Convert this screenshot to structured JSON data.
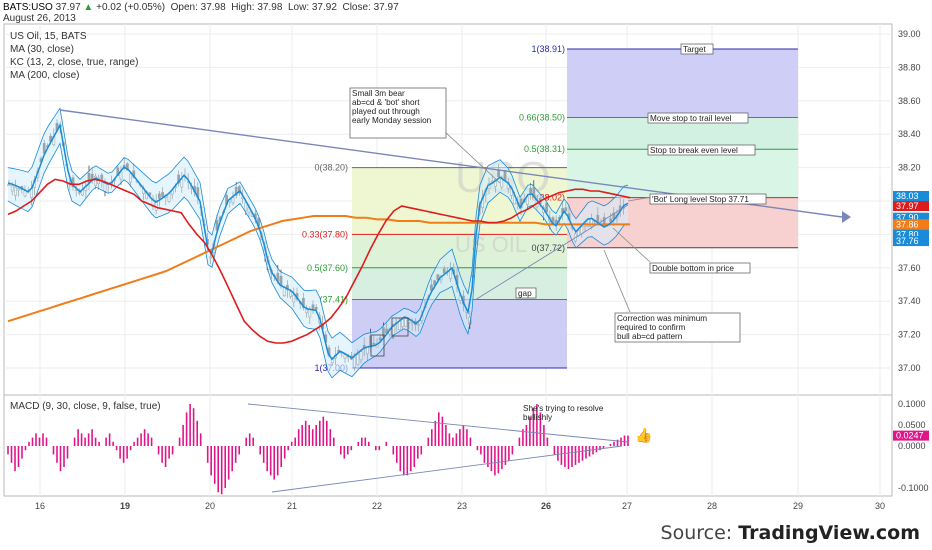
{
  "header": {
    "symbol": "BATS:USO",
    "last": "37.97",
    "change": "+0.02 (+0.05%)",
    "open_label": "Open:",
    "open": "37.98",
    "high_label": "High:",
    "high": "37.98",
    "low_label": "Low:",
    "low": "37.92",
    "close_label": "Close:",
    "close": "37.97",
    "date": "August 26, 2013"
  },
  "indicators": [
    "US Oil, 15, BATS",
    "MA (30, close)",
    "KC (13, 2, close, true, range)",
    "MA (200, close)"
  ],
  "macd_label": "MACD (9, 30, close, 9, false, true)",
  "source": {
    "prefix": "Source: ",
    "brand": "TradingView.com"
  },
  "colors": {
    "ma30": "#dd1d1d",
    "ma200": "#f07c1a",
    "kc": "#1a8bd6",
    "macd": "#e0158a",
    "trend": "#7a86b8"
  },
  "chart_data": {
    "type": "candlestick",
    "x_ticks": [
      "16",
      "19",
      "20",
      "21",
      "22",
      "23",
      "26",
      "27",
      "28",
      "29",
      "30"
    ],
    "y_ticks": [
      "39.00",
      "38.80",
      "38.60",
      "38.40",
      "38.20",
      "38.00",
      "37.80",
      "37.60",
      "37.40",
      "37.20",
      "37.00"
    ],
    "ylim": [
      36.9,
      39.08
    ],
    "price_tags": [
      {
        "label": "38.03",
        "value": 38.03,
        "color": "#1a8bd6"
      },
      {
        "label": "37.97",
        "value": 37.97,
        "color": "#dd1d1d"
      },
      {
        "label": "37.90",
        "value": 37.9,
        "color": "#1a8bd6"
      },
      {
        "label": "37.86",
        "value": 37.86,
        "color": "#f07c1a"
      },
      {
        "label": "37.80",
        "value": 37.8,
        "color": "#1a8bd6"
      },
      {
        "label": "37.76",
        "value": 37.76,
        "color": "#1a8bd6"
      }
    ],
    "fib_levels": [
      {
        "label": "1(38.91)",
        "value": 38.91,
        "color": "#2b2bb0"
      },
      {
        "label": "0.66(38.50)",
        "value": 38.5,
        "color": "#2e9e3a"
      },
      {
        "label": "0.5(38.31)",
        "value": 38.31,
        "color": "#2e9e3a"
      },
      {
        "label": "0(38.20)",
        "value": 38.2,
        "color": "#666666"
      },
      {
        "label": "0(38.02)",
        "value": 38.02,
        "color": "#dd1d1d"
      },
      {
        "label": "0.33(37.80)",
        "value": 37.8,
        "color": "#dd1d1d"
      },
      {
        "label": "0(37.72)",
        "value": 37.72,
        "color": "#444444"
      },
      {
        "label": "0.5(37.60)",
        "value": 37.6,
        "color": "#2e9e3a"
      },
      {
        "label": "(37.41)",
        "value": 37.41,
        "color": "#2e9e3a"
      },
      {
        "label": "1(37.00)",
        "value": 37.0,
        "color": "#2b2bb0"
      }
    ],
    "annotations": [
      "Small 3m bear\nab=cd & 'bot' short\nplayed out through\nearly Monday session",
      "Target",
      "Move stop to trail level",
      "Stop to break even level",
      "'Bot' Long level Stop 37.71",
      "Double bottom in price",
      "gap",
      "Correction was minimum\nrequired to confirm\nbull ab=cd pattern"
    ],
    "ma30": [
      37.92,
      37.94,
      37.97,
      38.0,
      38.05,
      38.1,
      38.13,
      38.12,
      38.1,
      38.1,
      38.12,
      38.13,
      38.12,
      38.1,
      38.08,
      38.06,
      38.04,
      38.0,
      37.98,
      37.96,
      37.95,
      37.94,
      37.93,
      37.86,
      37.8,
      37.75,
      37.67,
      37.58,
      37.48,
      37.38,
      37.28,
      37.23,
      37.19,
      37.16,
      37.15,
      37.15,
      37.16,
      37.18,
      37.2,
      37.23,
      37.26,
      37.3,
      37.36,
      37.43,
      37.52,
      37.61,
      37.71,
      37.8,
      37.88,
      37.94,
      37.97,
      37.96,
      37.95,
      37.94,
      37.93,
      37.92,
      37.91,
      37.9,
      37.89,
      37.88,
      37.88,
      37.87,
      37.87,
      37.88,
      37.9,
      37.93,
      37.95,
      37.98,
      38.01,
      38.03,
      38.05,
      38.06,
      38.07,
      38.07,
      38.06,
      38.06,
      38.05,
      38.04,
      38.03,
      38.02
    ],
    "ma200": [
      37.28,
      37.3,
      37.32,
      37.34,
      37.36,
      37.38,
      37.4,
      37.42,
      37.44,
      37.46,
      37.48,
      37.5,
      37.52,
      37.54,
      37.56,
      37.58,
      37.61,
      37.64,
      37.67,
      37.7,
      37.73,
      37.76,
      37.79,
      37.82,
      37.84,
      37.86,
      37.88,
      37.89,
      37.9,
      37.91,
      37.91,
      37.91,
      37.91,
      37.9,
      37.9,
      37.89,
      37.89,
      37.88,
      37.88,
      37.88,
      37.87,
      37.87,
      37.87,
      37.87,
      37.87,
      37.87,
      37.87,
      37.87,
      37.87,
      37.87,
      37.87,
      37.86,
      37.86,
      37.86,
      37.86,
      37.86,
      37.86,
      37.86,
      37.86,
      37.86
    ],
    "macd": [
      -0.02,
      -0.04,
      -0.06,
      -0.05,
      -0.03,
      -0.01,
      0.01,
      0.02,
      0.03,
      0.02,
      0.03,
      0.02,
      0.0,
      -0.02,
      -0.04,
      -0.06,
      -0.05,
      -0.03,
      0.0,
      0.02,
      0.04,
      0.03,
      0.02,
      0.03,
      0.04,
      0.02,
      0.01,
      0.0,
      0.02,
      0.03,
      0.01,
      -0.01,
      -0.03,
      -0.04,
      -0.03,
      -0.01,
      0.01,
      0.02,
      0.03,
      0.04,
      0.03,
      0.02,
      0.0,
      -0.02,
      -0.04,
      -0.05,
      -0.03,
      -0.02,
      0.0,
      0.02,
      0.05,
      0.08,
      0.1,
      0.09,
      0.06,
      0.03,
      0.0,
      -0.04,
      -0.07,
      -0.09,
      -0.11,
      -0.115,
      -0.1,
      -0.08,
      -0.06,
      -0.04,
      -0.02,
      0.0,
      0.02,
      0.03,
      0.02,
      0.0,
      -0.02,
      -0.04,
      -0.06,
      -0.07,
      -0.08,
      -0.07,
      -0.05,
      -0.03,
      -0.01,
      0.01,
      0.02,
      0.04,
      0.05,
      0.06,
      0.05,
      0.04,
      0.05,
      0.06,
      0.07,
      0.06,
      0.04,
      0.02,
      0.0,
      -0.02,
      -0.03,
      -0.02,
      -0.01,
      0.0,
      0.01,
      0.02,
      0.02,
      0.01,
      0.0,
      -0.01,
      -0.01,
      0.0,
      0.01,
      0.0,
      -0.02,
      -0.04,
      -0.06,
      -0.07,
      -0.07,
      -0.06,
      -0.05,
      -0.03,
      -0.02,
      0.0,
      0.02,
      0.04,
      0.06,
      0.08,
      0.07,
      0.05,
      0.03,
      0.02,
      0.03,
      0.04,
      0.05,
      0.04,
      0.02,
      0.0,
      -0.01,
      -0.02,
      -0.04,
      -0.05,
      -0.06,
      -0.07,
      -0.065,
      -0.055,
      -0.045,
      -0.035,
      -0.02,
      0.0,
      0.02,
      0.04,
      0.05,
      0.07,
      0.09,
      0.1,
      0.08,
      0.05,
      0.02,
      0.0,
      -0.02,
      -0.035,
      -0.045,
      -0.05,
      -0.055,
      -0.05,
      -0.045,
      -0.04,
      -0.035,
      -0.03,
      -0.025,
      -0.02,
      -0.015,
      -0.01,
      -0.005,
      0.0,
      0.005,
      0.01,
      0.015,
      0.02,
      0.025,
      0.0247
    ],
    "macd_ticks": [
      "0.1000",
      "0.0500",
      "0.0000",
      "-0.1000"
    ],
    "macd_tag": "0.0247",
    "macd_annotation": "She's trying to resolve\nbullishly"
  }
}
